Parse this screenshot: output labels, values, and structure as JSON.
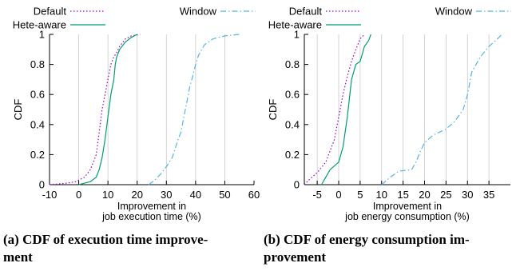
{
  "chart_data": [
    {
      "type": "line",
      "subtype": "cdf",
      "caption_line1": "(a) CDF of execution time improve-",
      "caption_line2": "ment",
      "xlabel_line1": "Improvement in",
      "xlabel_line2": "job execution time (%)",
      "ylabel": "CDF",
      "xlim": [
        -10,
        60
      ],
      "ylim": [
        0,
        1
      ],
      "xticks": [
        -10,
        0,
        10,
        20,
        30,
        40,
        50,
        60
      ],
      "yticks": [
        0,
        0.2,
        0.4,
        0.6,
        0.8,
        1
      ],
      "grid": "vertical",
      "legend": "top",
      "series": [
        {
          "name": "Default",
          "color": "#9400d3",
          "dash": "dotted",
          "points": [
            [
              -10,
              0
            ],
            [
              -4,
              0.01
            ],
            [
              -1,
              0.02
            ],
            [
              2,
              0.05
            ],
            [
              4,
              0.1
            ],
            [
              5,
              0.15
            ],
            [
              6,
              0.2
            ],
            [
              7,
              0.35
            ],
            [
              8,
              0.5
            ],
            [
              9,
              0.6
            ],
            [
              10,
              0.7
            ],
            [
              11,
              0.8
            ],
            [
              12,
              0.85
            ],
            [
              13,
              0.88
            ],
            [
              14,
              0.92
            ],
            [
              16,
              0.97
            ],
            [
              18,
              0.99
            ],
            [
              21,
              1
            ]
          ]
        },
        {
          "name": "Hete-aware",
          "color": "#009e73",
          "dash": "solid",
          "points": [
            [
              0,
              0
            ],
            [
              2,
              0.01
            ],
            [
              4,
              0.02
            ],
            [
              6,
              0.05
            ],
            [
              7,
              0.1
            ],
            [
              8,
              0.18
            ],
            [
              9,
              0.3
            ],
            [
              10,
              0.45
            ],
            [
              11,
              0.6
            ],
            [
              12,
              0.7
            ],
            [
              12.5,
              0.8
            ],
            [
              13,
              0.85
            ],
            [
              14,
              0.9
            ],
            [
              16,
              0.95
            ],
            [
              18,
              0.98
            ],
            [
              20,
              1
            ]
          ]
        },
        {
          "name": "Window",
          "color": "#56b4e9",
          "dash": "dashdot",
          "points": [
            [
              24,
              0
            ],
            [
              26,
              0.03
            ],
            [
              28,
              0.07
            ],
            [
              30,
              0.12
            ],
            [
              32,
              0.18
            ],
            [
              34,
              0.3
            ],
            [
              35,
              0.35
            ],
            [
              36,
              0.45
            ],
            [
              37,
              0.55
            ],
            [
              38,
              0.65
            ],
            [
              39,
              0.72
            ],
            [
              40,
              0.8
            ],
            [
              41,
              0.86
            ],
            [
              43,
              0.93
            ],
            [
              46,
              0.97
            ],
            [
              50,
              0.99
            ],
            [
              55,
              1
            ]
          ]
        }
      ]
    },
    {
      "type": "line",
      "subtype": "cdf",
      "caption_line1": "(b) CDF of energy consumption im-",
      "caption_line2": "provement",
      "xlabel_line1": "Improvement in",
      "xlabel_line2": "job energy consumption (%)",
      "ylabel": "CDF",
      "xlim": [
        -8,
        40
      ],
      "ylim": [
        0,
        1
      ],
      "xticks": [
        -5,
        0,
        5,
        10,
        15,
        20,
        25,
        30,
        35
      ],
      "yticks": [
        0,
        0.2,
        0.4,
        0.6,
        0.8,
        1
      ],
      "grid": "vertical",
      "legend": "top",
      "series": [
        {
          "name": "Default",
          "color": "#9400d3",
          "dash": "dotted",
          "points": [
            [
              -8,
              0
            ],
            [
              -7,
              0.03
            ],
            [
              -5,
              0.08
            ],
            [
              -3,
              0.15
            ],
            [
              -1,
              0.3
            ],
            [
              0,
              0.45
            ],
            [
              1,
              0.6
            ],
            [
              2,
              0.72
            ],
            [
              3,
              0.82
            ],
            [
              4,
              0.9
            ],
            [
              5,
              0.97
            ],
            [
              6,
              1
            ]
          ]
        },
        {
          "name": "Hete-aware",
          "color": "#009e73",
          "dash": "solid",
          "points": [
            [
              -4,
              0
            ],
            [
              -3,
              0.05
            ],
            [
              -2,
              0.1
            ],
            [
              0,
              0.15
            ],
            [
              1,
              0.25
            ],
            [
              2,
              0.45
            ],
            [
              3,
              0.7
            ],
            [
              4,
              0.8
            ],
            [
              5,
              0.82
            ],
            [
              5.5,
              0.87
            ],
            [
              6,
              0.92
            ],
            [
              7,
              0.96
            ],
            [
              7.5,
              1
            ]
          ]
        },
        {
          "name": "Window",
          "color": "#56b4e9",
          "dash": "dashdot",
          "points": [
            [
              10,
              0
            ],
            [
              12,
              0.05
            ],
            [
              14,
              0.09
            ],
            [
              17,
              0.1
            ],
            [
              18,
              0.15
            ],
            [
              19,
              0.22
            ],
            [
              20,
              0.28
            ],
            [
              22,
              0.33
            ],
            [
              25,
              0.37
            ],
            [
              27,
              0.42
            ],
            [
              29,
              0.5
            ],
            [
              30,
              0.6
            ],
            [
              31,
              0.75
            ],
            [
              32,
              0.8
            ],
            [
              33,
              0.85
            ],
            [
              35,
              0.92
            ],
            [
              37,
              0.97
            ],
            [
              38,
              1
            ]
          ]
        }
      ]
    }
  ]
}
